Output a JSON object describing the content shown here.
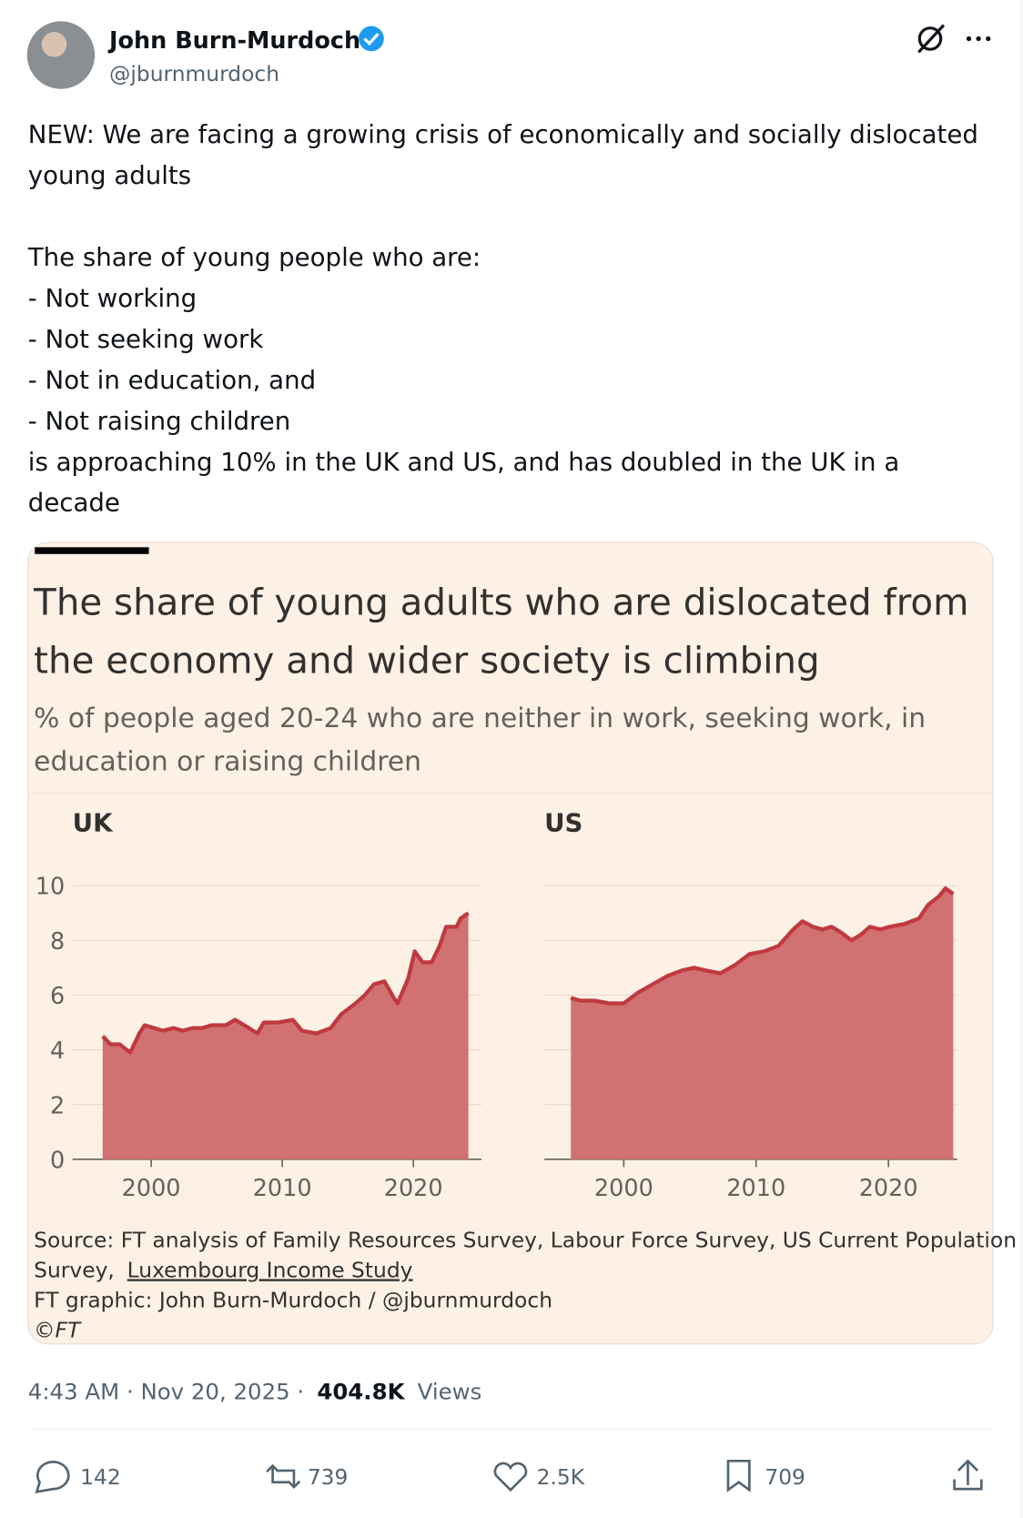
{
  "tweet": {
    "author_name": "John Burn-Murdoch",
    "handle": "@jburnmurdoch",
    "text": [
      [
        "NEW: We are facing a growing crisis of economically and socially dislocated",
        "young adults"
      ],
      [
        "The share of young people who are:",
        "- Not working",
        "- Not seeking work",
        "- Not in education, and",
        "- Not raising children",
        "is approaching 10% in the UK and US, and has doubled in the UK in a",
        "decade"
      ]
    ],
    "timestamp": "4:43 AM · Nov 20, 2025 ·",
    "views": "404.8K",
    "views_label": "Views",
    "replies": "142",
    "reposts": "739",
    "likes": "2.5K",
    "bookmarks": "709"
  },
  "graphic": {
    "title": [
      "The share of young adults who are dislocated from",
      "the economy and wider society is climbing"
    ],
    "subtitle": [
      "% of people aged 20-24 who are neither in work, seeking work, in",
      "education or raising children"
    ],
    "source_line1": "Source: FT analysis of Family Resources Survey, Labour Force Survey, US Current Population",
    "source_line2": "Survey,",
    "source_link": "Luxembourg Income Study",
    "credit": "FT graphic: John Burn-Murdoch / @jburnmurdoch",
    "copyright": "©FT"
  },
  "chart_data": [
    {
      "type": "area",
      "title": "UK",
      "color": "#c0393f",
      "fill": "#d27171",
      "x": [
        1996.3,
        1996.9,
        1997.6,
        1998.4,
        1999.1,
        1999.5,
        2000.2,
        2000.9,
        2001.7,
        2002.4,
        2003.2,
        2003.9,
        2004.6,
        2005.7,
        2006.4,
        2007.1,
        2008.1,
        2008.6,
        2009.7,
        2010.8,
        2011.5,
        2012.6,
        2013.7,
        2014.5,
        2015.6,
        2016.3,
        2017.0,
        2017.8,
        2018.5,
        2018.8,
        2019.6,
        2020.1,
        2020.7,
        2021.4,
        2022.0,
        2022.5,
        2023.3,
        2023.6,
        2024.2
      ],
      "values": [
        4.5,
        4.2,
        4.2,
        3.9,
        4.6,
        4.9,
        4.8,
        4.7,
        4.8,
        4.7,
        4.8,
        4.8,
        4.9,
        4.9,
        5.1,
        4.9,
        4.6,
        5.0,
        5.0,
        5.1,
        4.7,
        4.6,
        4.8,
        5.3,
        5.7,
        6.0,
        6.4,
        6.5,
        5.9,
        5.7,
        6.6,
        7.6,
        7.2,
        7.2,
        7.8,
        8.5,
        8.5,
        8.8,
        9.0
      ],
      "xlim": [
        1994,
        2025.2
      ],
      "xticks": [
        2000,
        2010,
        2020
      ],
      "ylim": [
        0,
        10
      ],
      "yticks": [
        0,
        2,
        4,
        6,
        8,
        10
      ],
      "grid": true
    },
    {
      "type": "area",
      "title": "US",
      "color": "#c0393f",
      "fill": "#d27171",
      "x": [
        1996.0,
        1996.7,
        1997.8,
        1998.9,
        2000.0,
        2001.1,
        2002.2,
        2003.3,
        2004.4,
        2005.3,
        2006.2,
        2007.3,
        2008.4,
        2009.5,
        2010.6,
        2011.7,
        2012.8,
        2013.5,
        2014.3,
        2015.0,
        2015.7,
        2016.4,
        2017.2,
        2017.9,
        2018.6,
        2019.4,
        2020.1,
        2021.2,
        2022.3,
        2023.0,
        2023.8,
        2024.3,
        2024.9
      ],
      "values": [
        5.9,
        5.8,
        5.8,
        5.7,
        5.7,
        6.1,
        6.4,
        6.7,
        6.9,
        7.0,
        6.9,
        6.8,
        7.1,
        7.5,
        7.6,
        7.8,
        8.4,
        8.7,
        8.5,
        8.4,
        8.5,
        8.3,
        8.0,
        8.2,
        8.5,
        8.4,
        8.5,
        8.6,
        8.8,
        9.3,
        9.6,
        9.9,
        9.7
      ],
      "xlim": [
        1994,
        2025.2
      ],
      "xticks": [
        2000,
        2010,
        2020
      ],
      "ylim": [
        0,
        10
      ],
      "yticks": [
        0,
        2,
        4,
        6,
        8,
        10
      ],
      "grid": true
    }
  ]
}
